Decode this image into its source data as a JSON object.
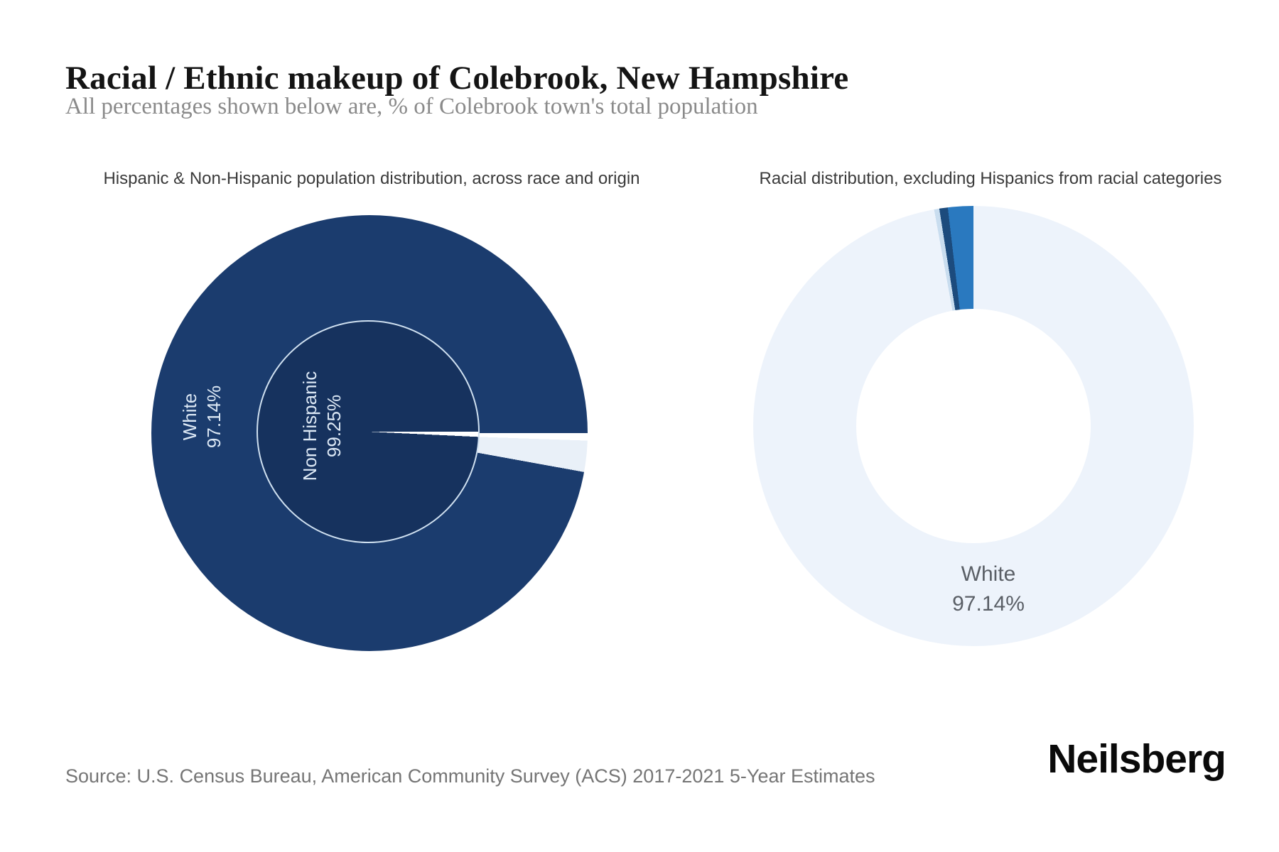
{
  "header": {
    "title": "Racial / Ethnic makeup of Colebrook, New Hampshire",
    "subtitle": "All percentages shown below are, % of Colebrook town's total population"
  },
  "charts": {
    "left": {
      "subtitle": "Hispanic & Non-Hispanic population distribution, across race and origin",
      "labels": {
        "outer": {
          "line1": "White",
          "line2": "97.14%"
        },
        "inner": {
          "line1": "Non Hispanic",
          "line2": "99.25%"
        }
      }
    },
    "right": {
      "subtitle": "Racial distribution, excluding Hispanics from racial categories",
      "label": {
        "line1": "White",
        "line2": "97.14%"
      }
    }
  },
  "footer": {
    "source": "Source: U.S. Census Bureau, American Community Survey (ACS) 2017-2021 5-Year Estimates",
    "brand": "Neilsberg"
  },
  "colors": {
    "navy_outer": "#1b3c6e",
    "navy_inner": "#16325e",
    "inner_ring_stroke": "#cfe0f0",
    "pale_wedge": "#e9f0f8",
    "donut_body": "#edf3fb",
    "donut_sliver_pale": "#c9ddef",
    "donut_sliver_navy": "#1c4b7d",
    "donut_sliver_blue": "#2a79bf",
    "label_on_navy": "#dce8f5",
    "label_gray": "#5a5f66"
  },
  "chart_data": [
    {
      "type": "pie",
      "variant": "nested-pie",
      "title": "Hispanic & Non-Hispanic population distribution, across race and origin",
      "legend": false,
      "outer_ring": {
        "dimension": "race",
        "start_angle_deg": 90,
        "segments": [
          {
            "label": "unlabeled sliver (divider)",
            "value": 0.55,
            "color": "#ffffff"
          },
          {
            "label": "Other races (unlabeled)",
            "value": 2.31,
            "color": "#e9f0f8"
          },
          {
            "label": "White",
            "value": 97.14,
            "color": "#1b3c6e",
            "data_label": "White 97.14%"
          }
        ]
      },
      "inner_pie": {
        "dimension": "ethnicity",
        "start_angle_deg": 90,
        "segments": [
          {
            "label": "Hispanic",
            "value": 0.75,
            "color": "#ffffff"
          },
          {
            "label": "Non Hispanic",
            "value": 99.25,
            "color": "#16325e",
            "data_label": "Non Hispanic 99.25%"
          }
        ]
      }
    },
    {
      "type": "pie",
      "variant": "donut",
      "title": "Racial distribution, excluding Hispanics from racial categories",
      "legend": false,
      "donut_hole_ratio": 0.53,
      "start_angle_deg": 0,
      "segments": [
        {
          "label": "White",
          "value": 97.14,
          "color": "#edf3fb",
          "data_label": "White 97.14%"
        },
        {
          "label": "unlabeled sliver",
          "value": 0.38,
          "color": "#c9ddef"
        },
        {
          "label": "unlabeled sliver",
          "value": 0.62,
          "color": "#1c4b7d"
        },
        {
          "label": "unlabeled sliver",
          "value": 1.86,
          "color": "#2a79bf"
        }
      ]
    }
  ]
}
